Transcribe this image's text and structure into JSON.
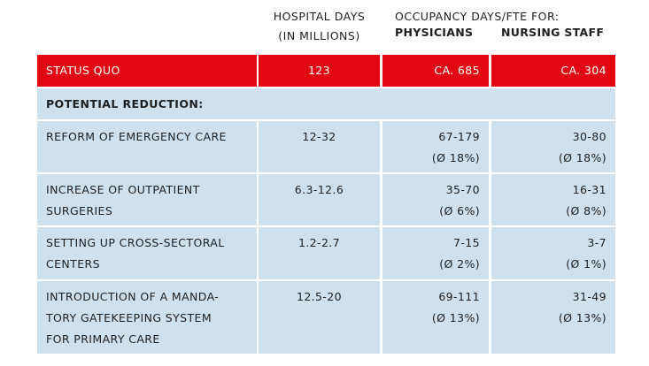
{
  "header": {
    "hospital_days": [
      "HOSPITAL DAYS",
      "(IN MILLIONS)"
    ],
    "occupancy": "OCCUPANCY DAYS/FTE FOR:",
    "physicians": "PHYSICIANS",
    "nursing_staff": "NURSING STAFF"
  },
  "status_quo": {
    "label": "STATUS QUO",
    "hospital_days": "123",
    "physicians": "CA. 685",
    "nursing_staff": "CA. 304"
  },
  "section_title": "POTENTIAL REDUCTION:",
  "rows": [
    {
      "label": [
        "REFORM OF EMERGENCY CARE"
      ],
      "hospital_days": "12-32",
      "physicians": [
        "67-179",
        "(Ø 18%)"
      ],
      "nursing_staff": [
        "30-80",
        "(Ø 18%)"
      ]
    },
    {
      "label": [
        "INCREASE OF OUTPATIENT",
        "SURGERIES"
      ],
      "hospital_days": "6.3-12.6",
      "physicians": [
        "35-70",
        "(Ø 6%)"
      ],
      "nursing_staff": [
        "16-31",
        "(Ø 8%)"
      ]
    },
    {
      "label": [
        "SETTING UP CROSS-SECTORAL",
        "CENTERS"
      ],
      "hospital_days": "1.2-2.7",
      "physicians": [
        "7-15",
        "(Ø 2%)"
      ],
      "nursing_staff": [
        "3-7",
        "(Ø 1%)"
      ]
    },
    {
      "label": [
        "INTRODUCTION OF A MANDA-",
        "TORY GATEKEEPING SYSTEM",
        "FOR PRIMARY CARE"
      ],
      "hospital_days": "12.5-20",
      "physicians": [
        "69-111",
        "(Ø 13%)"
      ],
      "nursing_staff": [
        "31-49",
        "(Ø 13%)"
      ]
    }
  ],
  "colors": {
    "header_red": "#e30613",
    "row_blue": "#cfe0ef"
  }
}
